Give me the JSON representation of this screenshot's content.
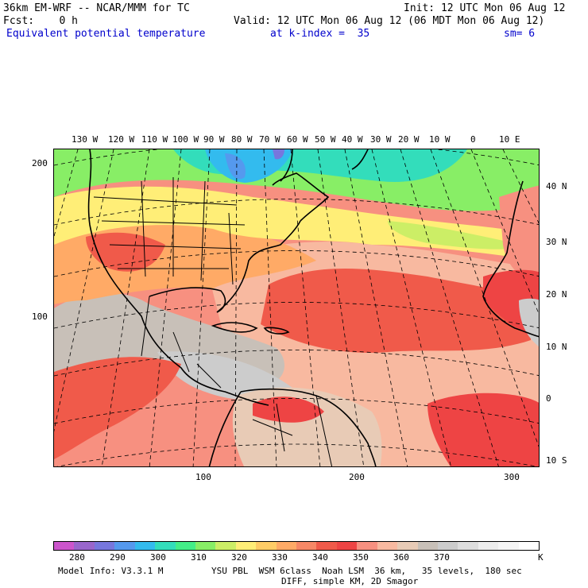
{
  "header": {
    "model_line": "36km EM-WRF -- NCAR/MMM for TC",
    "init_line": "Init: 12 UTC Mon 06 Aug 12",
    "fcst_line": "Fcst:    0 h",
    "valid_line": "Valid: 12 UTC Mon 06 Aug 12 (06 MDT Mon 06 Aug 12)",
    "field_name": "Equivalent potential temperature",
    "level_text": "at k-index =  35",
    "smoothing": "sm= 6"
  },
  "map": {
    "top_lon_labels": [
      "130 W",
      "120 W",
      "110 W",
      "100 W",
      "90 W",
      "80 W",
      "70 W",
      "60 W",
      "50 W",
      "40 W",
      "30 W",
      "20 W",
      "10 W",
      "0",
      "10 E"
    ],
    "right_lat_labels": [
      "40 N",
      "30 N",
      "20 N",
      "10 N",
      "0",
      "10 S"
    ],
    "left_grid_labels": [
      "200",
      "100"
    ],
    "bottom_grid_labels": [
      "100",
      "200",
      "300"
    ]
  },
  "colorbar": {
    "colors": [
      "#cc55cc",
      "#9966cc",
      "#7777dd",
      "#5599ee",
      "#33bbee",
      "#33ddbb",
      "#44ee88",
      "#88ee66",
      "#ccee66",
      "#ffee77",
      "#ffcc66",
      "#ffaa66",
      "#f78866",
      "#f05a4a",
      "#ee4444",
      "#f79080",
      "#f8b9a0",
      "#e8cbb6",
      "#c8c0b8",
      "#cccccc",
      "#dddddd",
      "#ededed",
      "#f6f6f6",
      "#ffffff"
    ],
    "labels": [
      "280",
      "290",
      "300",
      "310",
      "320",
      "330",
      "340",
      "350",
      "360",
      "370"
    ],
    "unit": "K"
  },
  "footer": {
    "model_info": "Model Info: V3.3.1 M",
    "physics_line": "YSU PBL  WSM 6class  Noah LSM  36 km,   35 levels,  180 sec",
    "diff_line": "DIFF, simple KM, 2D Smagor"
  }
}
